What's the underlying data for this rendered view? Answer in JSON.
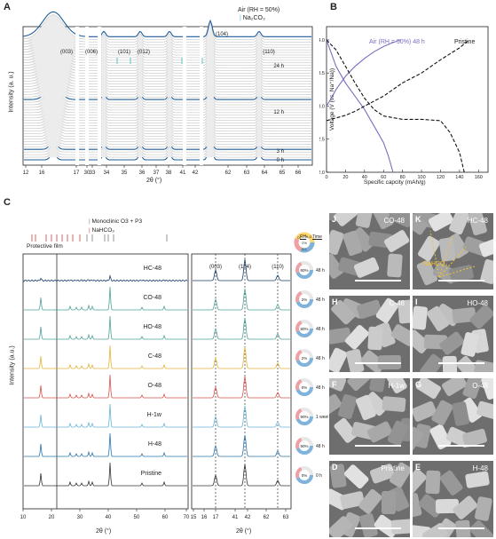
{
  "panelA": {
    "label": "A",
    "ylabel": "Intensity (a. u.)",
    "xlabel": "2θ (°)",
    "legend_air": "Air (RH = 50%)",
    "legend_na2co3": "Na₂CO₃",
    "peaks": [
      "(003)",
      "(006)",
      "(101)",
      "(012)",
      "(104)",
      "(110)"
    ],
    "times": [
      "24 h",
      "12 h",
      "3 h",
      "0 h"
    ],
    "ticks": [
      "12",
      "16",
      "17",
      "30",
      "33",
      "34",
      "35",
      "36",
      "37",
      "38",
      "41",
      "42",
      "62",
      "63",
      "64",
      "65",
      "66"
    ]
  },
  "panelB": {
    "label": "B",
    "ylabel": "Voltage (V (vs. Na⁺/Na))",
    "xlabel": "Specific capcity (mAh/g)",
    "curve_air": "Air (RH = 50%) 48 h",
    "curve_pristine": "Pristine",
    "yticks": [
      "2.0",
      "2.5",
      "3.0",
      "3.5",
      "4.0"
    ],
    "xticks": [
      "0",
      "20",
      "40",
      "60",
      "80",
      "100",
      "120",
      "140",
      "160"
    ],
    "chart_data": {
      "type": "line",
      "xlabel": "Specific capcity (mAh/g)",
      "ylabel": "Voltage (V (vs. Na⁺/Na))",
      "xlim": [
        0,
        170
      ],
      "ylim": [
        2.0,
        4.2
      ],
      "series": [
        {
          "name": "Air (RH = 50%) 48 h",
          "color": "#7b6cc0",
          "segment": "charge",
          "x": [
            0,
            5,
            10,
            20,
            30,
            40,
            50,
            60,
            70,
            78
          ],
          "y": [
            3.0,
            3.12,
            3.25,
            3.45,
            3.6,
            3.72,
            3.82,
            3.9,
            3.96,
            4.0
          ]
        },
        {
          "name": "Air (RH = 50%) 48 h",
          "color": "#7b6cc0",
          "segment": "discharge",
          "x": [
            0,
            10,
            20,
            30,
            40,
            50,
            60,
            65,
            68,
            70
          ],
          "y": [
            4.0,
            3.6,
            3.35,
            3.15,
            2.95,
            2.7,
            2.45,
            2.25,
            2.1,
            2.0
          ]
        },
        {
          "name": "Pristine",
          "color": "#111111",
          "segment": "charge",
          "x": [
            0,
            10,
            20,
            30,
            40,
            60,
            80,
            100,
            120,
            140,
            150
          ],
          "y": [
            2.78,
            2.82,
            2.86,
            2.92,
            3.0,
            3.15,
            3.35,
            3.5,
            3.7,
            3.88,
            4.0
          ]
        },
        {
          "name": "Pristine",
          "color": "#111111",
          "segment": "discharge",
          "x": [
            0,
            10,
            20,
            30,
            40,
            50,
            60,
            80,
            100,
            120,
            130,
            140,
            145
          ],
          "y": [
            4.0,
            3.85,
            3.6,
            3.35,
            3.12,
            2.95,
            2.85,
            2.8,
            2.8,
            2.78,
            2.6,
            2.3,
            2.0
          ]
        }
      ]
    }
  },
  "panelC": {
    "label": "C",
    "ylabel": "Intensity (a.u.)",
    "xlabel": "2θ (°)",
    "legend_o3p3": "Monoclinic O3 + P3",
    "legend_nahco3": "NaHCO₃",
    "protective": "Protective film",
    "samples": [
      {
        "name": "HC-48",
        "color": "#1a3f6e",
        "rh": "80%",
        "time": "48 h"
      },
      {
        "name": "CO-48",
        "color": "#4fa39b",
        "rh": "2%",
        "time": "48 h"
      },
      {
        "name": "HO-48",
        "color": "#4fa39b",
        "rh": "80%",
        "time": "48 h"
      },
      {
        "name": "C-48",
        "color": "#e1b43a",
        "rh": "2%",
        "time": "48 h"
      },
      {
        "name": "O-48",
        "color": "#d9534a",
        "rh": "0%",
        "time": "48 h"
      },
      {
        "name": "H-1w",
        "color": "#69b3d6",
        "rh": "90%",
        "time": "1 week"
      },
      {
        "name": "H-48",
        "color": "#2a76ae",
        "rh": "90%",
        "time": "48 h"
      },
      {
        "name": "Pristine",
        "color": "#333333",
        "rh": "0%",
        "time": "0 h"
      }
    ],
    "left_ticks": [
      "10",
      "20",
      "30",
      "40",
      "50",
      "60",
      "70"
    ],
    "right_peaks": [
      "(003)",
      "(104)",
      "(110)"
    ],
    "right_ticks": [
      "15",
      "16",
      "17",
      "41",
      "42",
      "62",
      "63"
    ],
    "legend_rh": "RH",
    "legend_time": "Time",
    "legend_h2o": "H₂O",
    "legend_co2": "CO₂",
    "legend_o2": "O₂",
    "legend_pct": "2%"
  },
  "sem": [
    {
      "id": "J",
      "name": "CO-48"
    },
    {
      "id": "K",
      "name": "HC-48",
      "extra": "NaHCO₃"
    },
    {
      "id": "H",
      "name": "C-48"
    },
    {
      "id": "I",
      "name": "HO-48"
    },
    {
      "id": "F",
      "name": "H-1w"
    },
    {
      "id": "G",
      "name": "O-48"
    },
    {
      "id": "D",
      "name": "Pristine"
    },
    {
      "id": "E",
      "name": "H-48"
    }
  ]
}
